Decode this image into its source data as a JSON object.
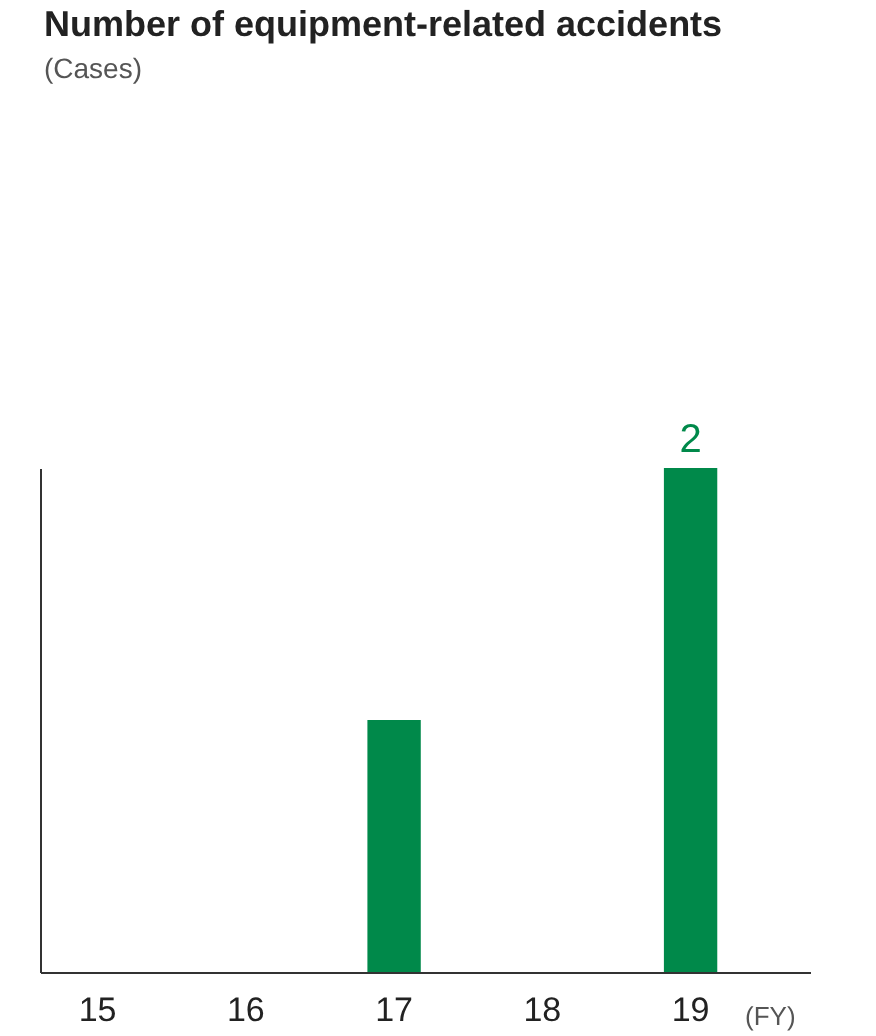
{
  "chart_data": {
    "type": "bar",
    "title": "Number of equipment-related accidents",
    "annotations": [
      "(Cases)"
    ],
    "xlabel": "(FY)",
    "categories": [
      "15",
      "16",
      "17",
      "18",
      "19"
    ],
    "values": [
      0,
      0,
      1,
      0,
      2
    ],
    "value_labels": [
      null,
      null,
      null,
      null,
      "2"
    ],
    "color": "#00894a"
  }
}
